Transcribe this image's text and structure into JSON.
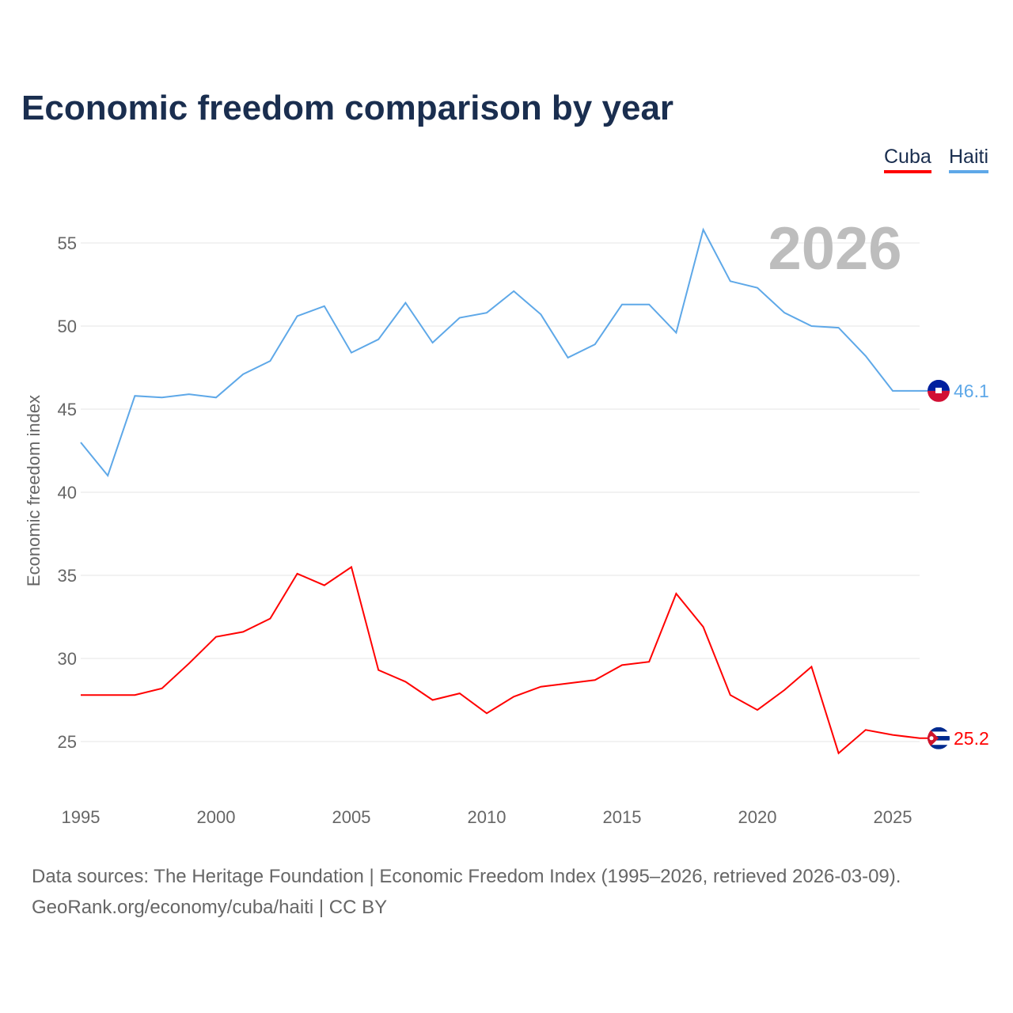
{
  "title": "Economic freedom comparison by year",
  "source_line1": "Data sources: The Heritage Foundation | Economic Freedom Index (1995–2026, retrieved 2026-03-09).",
  "source_line2": "GeoRank.org/economy/cuba/haiti | CC BY",
  "chart_data": {
    "type": "line",
    "title": "Economic freedom comparison by year",
    "xlabel": "",
    "ylabel": "Economic freedom index",
    "watermark_year": "2026",
    "x": [
      1995,
      1996,
      1997,
      1998,
      1999,
      2000,
      2001,
      2002,
      2003,
      2004,
      2005,
      2006,
      2007,
      2008,
      2009,
      2010,
      2011,
      2012,
      2013,
      2014,
      2015,
      2016,
      2017,
      2018,
      2019,
      2020,
      2021,
      2022,
      2023,
      2024,
      2025,
      2026
    ],
    "xticks": [
      1995,
      2000,
      2005,
      2010,
      2015,
      2020,
      2025
    ],
    "yticks": [
      25,
      30,
      35,
      40,
      45,
      50,
      55
    ],
    "ylim": [
      22,
      58
    ],
    "xlim": [
      1995,
      2026
    ],
    "legend": "top-right",
    "series": [
      {
        "name": "Cuba",
        "color": "#ff0000",
        "end_label": "25.2",
        "values": [
          27.8,
          27.8,
          27.8,
          28.2,
          29.7,
          31.3,
          31.6,
          32.4,
          35.1,
          34.4,
          35.5,
          29.3,
          28.6,
          27.5,
          27.9,
          26.7,
          27.7,
          28.3,
          28.5,
          28.7,
          29.6,
          29.8,
          33.9,
          31.9,
          27.8,
          26.9,
          28.1,
          29.5,
          24.3,
          25.7,
          25.4,
          25.2
        ]
      },
      {
        "name": "Haiti",
        "color": "#5ea8e8",
        "end_label": "46.1",
        "values": [
          43.0,
          41.0,
          45.8,
          45.7,
          45.9,
          45.7,
          47.1,
          47.9,
          50.6,
          51.2,
          48.4,
          49.2,
          51.4,
          49.0,
          50.5,
          50.8,
          52.1,
          50.7,
          48.1,
          48.9,
          51.3,
          51.3,
          49.6,
          55.8,
          52.7,
          52.3,
          50.8,
          50.0,
          49.9,
          48.2,
          46.1,
          46.1
        ]
      }
    ]
  }
}
